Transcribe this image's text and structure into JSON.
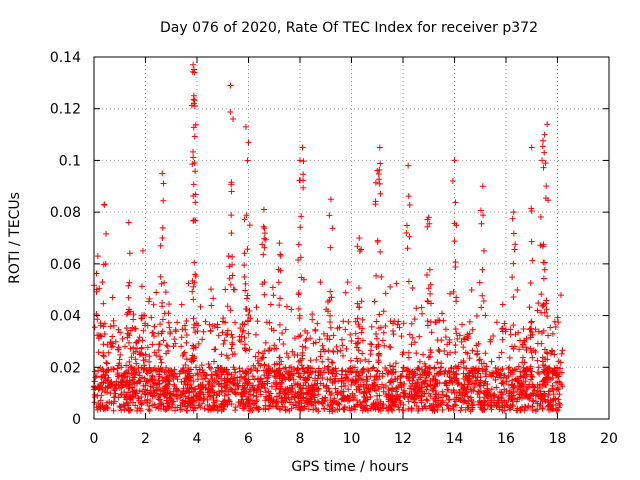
{
  "chart_data": {
    "type": "scatter",
    "title": "Day 076 of 2020, Rate Of TEC Index for receiver p372",
    "xlabel": "GPS time / hours",
    "ylabel": "ROTI / TECUs",
    "xlim": [
      0,
      20
    ],
    "ylim": [
      0,
      0.14
    ],
    "x_ticks": [
      "0",
      "2",
      "4",
      "6",
      "8",
      "10",
      "12",
      "14",
      "16",
      "18",
      "20"
    ],
    "y_ticks": [
      "0",
      "0.02",
      "0.04",
      "0.06",
      "0.08",
      "0.1",
      "0.12",
      "0.14"
    ],
    "grid": true,
    "marker": "+",
    "color": "#ff0000",
    "data_extent_hours": [
      0,
      18.2
    ],
    "baseline_range": [
      0.003,
      0.02
    ],
    "series": [
      {
        "name": "ROTI",
        "notable_points": [
          {
            "x": 3.85,
            "y": 0.137
          },
          {
            "x": 3.9,
            "y": 0.134
          },
          {
            "x": 3.88,
            "y": 0.125
          },
          {
            "x": 3.92,
            "y": 0.121
          },
          {
            "x": 5.3,
            "y": 0.129
          },
          {
            "x": 5.4,
            "y": 0.116
          },
          {
            "x": 5.9,
            "y": 0.113
          },
          {
            "x": 6.0,
            "y": 0.107
          },
          {
            "x": 2.65,
            "y": 0.095
          },
          {
            "x": 8.1,
            "y": 0.105
          },
          {
            "x": 8.0,
            "y": 0.1
          },
          {
            "x": 11.1,
            "y": 0.105
          },
          {
            "x": 11.0,
            "y": 0.096
          },
          {
            "x": 12.2,
            "y": 0.098
          },
          {
            "x": 14.0,
            "y": 0.1
          },
          {
            "x": 17.6,
            "y": 0.114
          },
          {
            "x": 17.5,
            "y": 0.11
          },
          {
            "x": 17.0,
            "y": 0.105
          },
          {
            "x": 17.4,
            "y": 0.1
          },
          {
            "x": 15.1,
            "y": 0.09
          },
          {
            "x": 0.4,
            "y": 0.083
          },
          {
            "x": 0.15,
            "y": 0.063
          },
          {
            "x": 1.35,
            "y": 0.076
          },
          {
            "x": 9.2,
            "y": 0.085
          },
          {
            "x": 6.6,
            "y": 0.081
          },
          {
            "x": 13.0,
            "y": 0.078
          },
          {
            "x": 16.3,
            "y": 0.08
          },
          {
            "x": 1.9,
            "y": 0.065
          },
          {
            "x": 10.3,
            "y": 0.07
          },
          {
            "x": 7.2,
            "y": 0.068
          }
        ]
      }
    ]
  }
}
